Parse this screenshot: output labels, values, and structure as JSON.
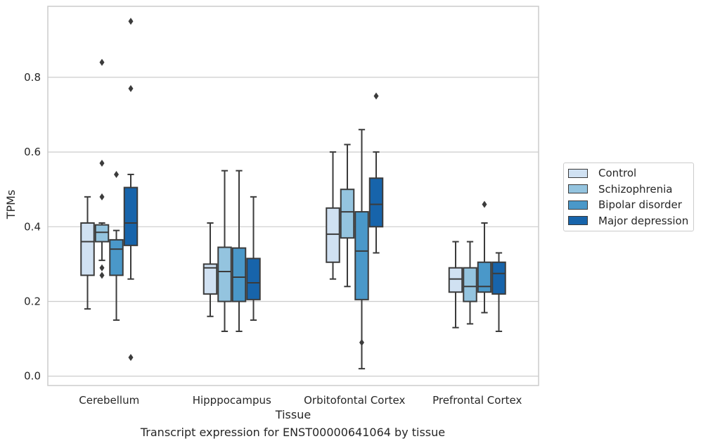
{
  "caption": "Transcript expression for ENST00000641064 by tissue",
  "chart_data": {
    "type": "box",
    "title": "",
    "xlabel": "Tissue",
    "ylabel": "TPMs",
    "ylim": [
      -0.025,
      0.99
    ],
    "yticks": [
      0.0,
      0.2,
      0.4,
      0.6,
      0.8
    ],
    "ytick_labels": [
      "0.0",
      "0.2",
      "0.4",
      "0.6",
      "0.8"
    ],
    "grid": "horizontal",
    "legend_position": "right",
    "categories": [
      "Cerebellum",
      "Hipppocampus",
      "Orbitofontal Cortex",
      "Prefrontal Cortex"
    ],
    "series": [
      {
        "name": "Control",
        "color": "#d0e1f2",
        "boxes": [
          {
            "whislo": 0.18,
            "q1": 0.27,
            "med": 0.36,
            "q3": 0.41,
            "whishi": 0.48,
            "fliers": []
          },
          {
            "whislo": 0.16,
            "q1": 0.22,
            "med": 0.29,
            "q3": 0.3,
            "whishi": 0.41,
            "fliers": []
          },
          {
            "whislo": 0.26,
            "q1": 0.305,
            "med": 0.38,
            "q3": 0.45,
            "whishi": 0.6,
            "fliers": []
          },
          {
            "whislo": 0.13,
            "q1": 0.225,
            "med": 0.26,
            "q3": 0.29,
            "whishi": 0.36,
            "fliers": []
          }
        ]
      },
      {
        "name": "Schizophrenia",
        "color": "#94c4df",
        "boxes": [
          {
            "whislo": 0.31,
            "q1": 0.36,
            "med": 0.385,
            "q3": 0.405,
            "whishi": 0.41,
            "fliers": [
              0.84,
              0.57,
              0.48,
              0.29,
              0.27
            ]
          },
          {
            "whislo": 0.12,
            "q1": 0.2,
            "med": 0.28,
            "q3": 0.345,
            "whishi": 0.55,
            "fliers": []
          },
          {
            "whislo": 0.24,
            "q1": 0.37,
            "med": 0.44,
            "q3": 0.5,
            "whishi": 0.62,
            "fliers": []
          },
          {
            "whislo": 0.14,
            "q1": 0.2,
            "med": 0.24,
            "q3": 0.29,
            "whishi": 0.36,
            "fliers": []
          }
        ]
      },
      {
        "name": "Bipolar disorder",
        "color": "#4a98c9",
        "boxes": [
          {
            "whislo": 0.15,
            "q1": 0.27,
            "med": 0.34,
            "q3": 0.365,
            "whishi": 0.39,
            "fliers": [
              0.54
            ]
          },
          {
            "whislo": 0.12,
            "q1": 0.2,
            "med": 0.265,
            "q3": 0.343,
            "whishi": 0.55,
            "fliers": []
          },
          {
            "whislo": 0.02,
            "q1": 0.205,
            "med": 0.335,
            "q3": 0.44,
            "whishi": 0.66,
            "fliers": [
              0.09
            ]
          },
          {
            "whislo": 0.17,
            "q1": 0.225,
            "med": 0.24,
            "q3": 0.305,
            "whishi": 0.41,
            "fliers": [
              0.46
            ]
          }
        ]
      },
      {
        "name": "Major depression",
        "color": "#1764ab",
        "boxes": [
          {
            "whislo": 0.26,
            "q1": 0.35,
            "med": 0.41,
            "q3": 0.505,
            "whishi": 0.54,
            "fliers": [
              0.95,
              0.77,
              0.05
            ]
          },
          {
            "whislo": 0.15,
            "q1": 0.205,
            "med": 0.25,
            "q3": 0.315,
            "whishi": 0.48,
            "fliers": []
          },
          {
            "whislo": 0.33,
            "q1": 0.4,
            "med": 0.46,
            "q3": 0.53,
            "whishi": 0.6,
            "fliers": [
              0.75
            ]
          },
          {
            "whislo": 0.12,
            "q1": 0.22,
            "med": 0.275,
            "q3": 0.305,
            "whishi": 0.33,
            "fliers": []
          }
        ]
      }
    ]
  }
}
